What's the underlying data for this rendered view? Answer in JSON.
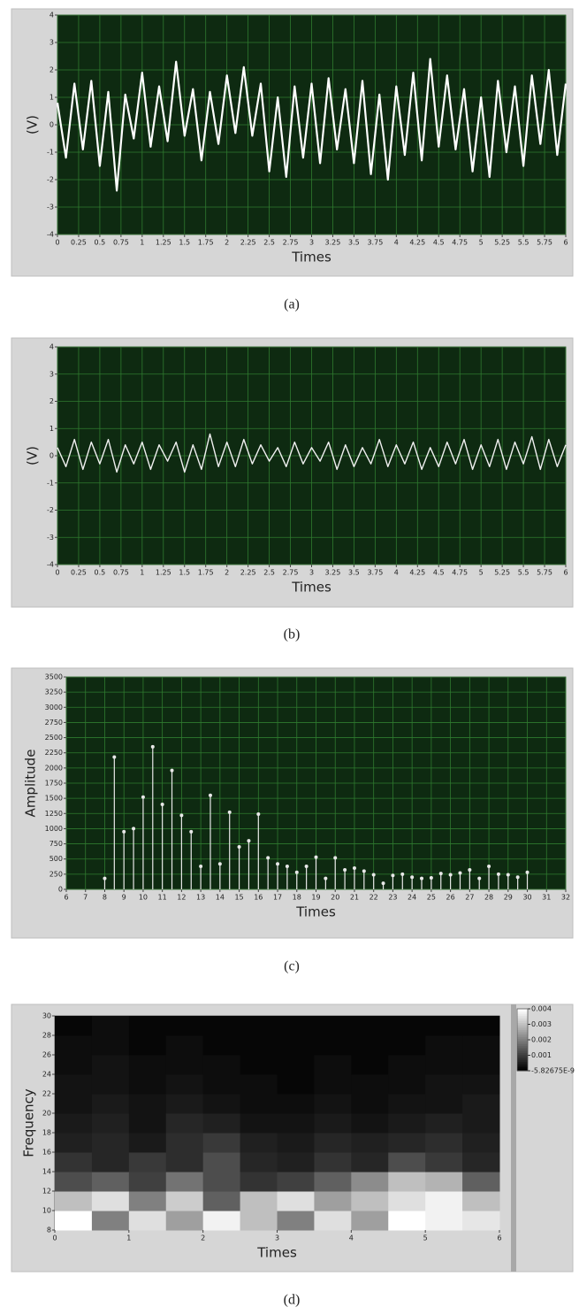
{
  "chart_data": [
    {
      "type": "line",
      "xlabel": "Times",
      "ylabel": "(V)",
      "caption": "(a)",
      "color": "#ffffff",
      "grid": true,
      "xlim": [
        0,
        6
      ],
      "ylim": [
        -4,
        4
      ],
      "xticks": [
        0,
        0.25,
        0.5,
        0.75,
        1,
        1.25,
        1.5,
        1.75,
        2,
        2.25,
        2.5,
        2.75,
        3,
        3.25,
        3.5,
        3.75,
        4,
        4.25,
        4.5,
        4.75,
        5,
        5.25,
        5.5,
        5.75,
        6
      ],
      "yticks": [
        -4,
        -3,
        -2,
        -1,
        0,
        1,
        2,
        3,
        4
      ],
      "x": [
        0,
        0.1,
        0.2,
        0.3,
        0.4,
        0.5,
        0.6,
        0.7,
        0.8,
        0.9,
        1,
        1.1,
        1.2,
        1.3,
        1.4,
        1.5,
        1.6,
        1.7,
        1.8,
        1.9,
        2,
        2.1,
        2.2,
        2.3,
        2.4,
        2.5,
        2.6,
        2.7,
        2.8,
        2.9,
        3,
        3.1,
        3.2,
        3.3,
        3.4,
        3.5,
        3.6,
        3.7,
        3.8,
        3.9,
        4,
        4.1,
        4.2,
        4.3,
        4.4,
        4.5,
        4.6,
        4.7,
        4.8,
        4.9,
        5,
        5.1,
        5.2,
        5.3,
        5.4,
        5.5,
        5.6,
        5.7,
        5.8,
        5.9,
        6
      ],
      "values": [
        0.8,
        -1.2,
        1.5,
        -0.9,
        1.6,
        -1.5,
        1.2,
        -2.4,
        1.1,
        -0.5,
        1.9,
        -0.8,
        1.4,
        -0.6,
        2.3,
        -0.4,
        1.3,
        -1.3,
        1.2,
        -0.7,
        1.8,
        -0.3,
        2.1,
        -0.4,
        1.5,
        -1.7,
        1.0,
        -1.9,
        1.4,
        -1.2,
        1.5,
        -1.4,
        1.7,
        -0.9,
        1.3,
        -1.4,
        1.6,
        -1.8,
        1.1,
        -2.0,
        1.4,
        -1.1,
        1.9,
        -1.3,
        2.4,
        -0.8,
        1.8,
        -0.9,
        1.3,
        -1.7,
        1.0,
        -1.9,
        1.6,
        -1.0,
        1.4,
        -1.5,
        1.8,
        -0.7,
        2.0,
        -1.1,
        1.5
      ]
    },
    {
      "type": "line",
      "xlabel": "Times",
      "ylabel": "(V)",
      "caption": "(b)",
      "color": "#f0f0f0",
      "grid": true,
      "xlim": [
        0,
        6
      ],
      "ylim": [
        -4,
        4
      ],
      "xticks": [
        0,
        0.25,
        0.5,
        0.75,
        1,
        1.25,
        1.5,
        1.75,
        2,
        2.25,
        2.5,
        2.75,
        3,
        3.25,
        3.5,
        3.75,
        4,
        4.25,
        4.5,
        4.75,
        5,
        5.25,
        5.5,
        5.75,
        6
      ],
      "yticks": [
        -4,
        -3,
        -2,
        -1,
        0,
        1,
        2,
        3,
        4
      ],
      "x": [
        0,
        0.1,
        0.2,
        0.3,
        0.4,
        0.5,
        0.6,
        0.7,
        0.8,
        0.9,
        1,
        1.1,
        1.2,
        1.3,
        1.4,
        1.5,
        1.6,
        1.7,
        1.8,
        1.9,
        2,
        2.1,
        2.2,
        2.3,
        2.4,
        2.5,
        2.6,
        2.7,
        2.8,
        2.9,
        3,
        3.1,
        3.2,
        3.3,
        3.4,
        3.5,
        3.6,
        3.7,
        3.8,
        3.9,
        4,
        4.1,
        4.2,
        4.3,
        4.4,
        4.5,
        4.6,
        4.7,
        4.8,
        4.9,
        5,
        5.1,
        5.2,
        5.3,
        5.4,
        5.5,
        5.6,
        5.7,
        5.8,
        5.9,
        6
      ],
      "values": [
        0.3,
        -0.4,
        0.6,
        -0.5,
        0.5,
        -0.3,
        0.6,
        -0.6,
        0.4,
        -0.3,
        0.5,
        -0.5,
        0.4,
        -0.2,
        0.5,
        -0.6,
        0.4,
        -0.5,
        0.8,
        -0.4,
        0.5,
        -0.4,
        0.6,
        -0.3,
        0.4,
        -0.2,
        0.3,
        -0.4,
        0.5,
        -0.3,
        0.3,
        -0.2,
        0.5,
        -0.5,
        0.4,
        -0.4,
        0.3,
        -0.3,
        0.6,
        -0.4,
        0.4,
        -0.3,
        0.5,
        -0.5,
        0.3,
        -0.4,
        0.5,
        -0.3,
        0.6,
        -0.5,
        0.4,
        -0.4,
        0.6,
        -0.5,
        0.5,
        -0.3,
        0.7,
        -0.5,
        0.6,
        -0.4,
        0.4
      ]
    },
    {
      "type": "stem",
      "xlabel": "Times",
      "ylabel": "Amplitude",
      "caption": "(c)",
      "color": "#e8e8e8",
      "grid": true,
      "xlim": [
        6,
        32
      ],
      "ylim": [
        0,
        3500
      ],
      "xticks": [
        6,
        7,
        8,
        9,
        10,
        11,
        12,
        13,
        14,
        15,
        16,
        17,
        18,
        19,
        20,
        21,
        22,
        23,
        24,
        25,
        26,
        27,
        28,
        29,
        30,
        31,
        32
      ],
      "yticks": [
        0,
        250,
        500,
        750,
        1000,
        1250,
        1500,
        1750,
        2000,
        2250,
        2500,
        2750,
        3000,
        3250,
        3500
      ],
      "x": [
        8,
        8.5,
        9,
        9.5,
        10,
        10.5,
        11,
        11.5,
        12,
        12.5,
        13,
        13.5,
        14,
        14.5,
        15,
        15.5,
        16,
        16.5,
        17,
        17.5,
        18,
        18.5,
        19,
        19.5,
        20,
        20.5,
        21,
        21.5,
        22,
        22.5,
        23,
        23.5,
        24,
        24.5,
        25,
        25.5,
        26,
        26.5,
        27,
        27.5,
        28,
        28.5,
        29,
        29.5,
        30
      ],
      "values": [
        180,
        2180,
        950,
        1000,
        1520,
        2350,
        1400,
        1960,
        1220,
        950,
        380,
        1550,
        420,
        1270,
        700,
        800,
        1240,
        520,
        420,
        380,
        280,
        380,
        530,
        180,
        520,
        320,
        350,
        300,
        240,
        100,
        230,
        250,
        200,
        180,
        190,
        260,
        240,
        270,
        320,
        180,
        380,
        250,
        240,
        200,
        280
      ]
    },
    {
      "type": "heatmap",
      "xlabel": "Times",
      "ylabel": "Frequency",
      "caption": "(d)",
      "grid": false,
      "xlim": [
        0,
        6
      ],
      "ylim": [
        8,
        30
      ],
      "xticks": [
        0,
        1,
        2,
        3,
        4,
        5,
        6
      ],
      "yticks": [
        8,
        10,
        12,
        14,
        16,
        18,
        20,
        22,
        24,
        26,
        28,
        30
      ],
      "x": [
        0.25,
        0.75,
        1.25,
        1.75,
        2.25,
        2.75,
        3.25,
        3.75,
        4.25,
        4.75,
        5.25,
        5.75
      ],
      "y": [
        9,
        11,
        13,
        15,
        17,
        19,
        21,
        23,
        25,
        27,
        29
      ],
      "zlim": [
        -5.82675e-09,
        0.004
      ],
      "zticks": [
        0.004,
        0.003,
        0.002,
        0.001,
        {
          "value": -5.82675e-09,
          "label": "-5.82675E-9"
        }
      ],
      "z": [
        [
          0.004,
          0.002,
          0.0035,
          0.0025,
          0.0038,
          0.003,
          0.002,
          0.0035,
          0.0025,
          0.004,
          0.0038,
          0.0036
        ],
        [
          0.003,
          0.0035,
          0.002,
          0.0032,
          0.0015,
          0.003,
          0.0035,
          0.0025,
          0.003,
          0.0035,
          0.0038,
          0.003
        ],
        [
          0.0012,
          0.0015,
          0.001,
          0.0018,
          0.0012,
          0.0008,
          0.001,
          0.0015,
          0.0022,
          0.003,
          0.0028,
          0.0015
        ],
        [
          0.0008,
          0.0006,
          0.0009,
          0.0007,
          0.0012,
          0.0006,
          0.0005,
          0.0008,
          0.0006,
          0.0012,
          0.0009,
          0.0006
        ],
        [
          0.0005,
          0.0006,
          0.0004,
          0.0007,
          0.0009,
          0.0005,
          0.0004,
          0.0006,
          0.0005,
          0.0006,
          0.0007,
          0.0005
        ],
        [
          0.0004,
          0.0005,
          0.0003,
          0.0006,
          0.0005,
          0.0003,
          0.0003,
          0.0004,
          0.0003,
          0.0004,
          0.0005,
          0.0004
        ],
        [
          0.0003,
          0.0004,
          0.0003,
          0.0004,
          0.0003,
          0.0002,
          0.0002,
          0.0003,
          0.0002,
          0.0003,
          0.0003,
          0.0004
        ],
        [
          0.0003,
          0.0003,
          0.0002,
          0.0003,
          0.0002,
          0.0002,
          0.0001,
          0.0002,
          0.0002,
          0.0002,
          0.0003,
          0.0003
        ],
        [
          0.0002,
          0.0003,
          0.0002,
          0.0002,
          0.0002,
          0.0001,
          0.0001,
          0.0002,
          0.0001,
          0.0002,
          0.0002,
          0.0002
        ],
        [
          0.0002,
          0.0002,
          0.0001,
          0.0002,
          0.0001,
          0.0001,
          0.0001,
          0.0001,
          0.0001,
          0.0001,
          0.0002,
          0.0002
        ],
        [
          0.0001,
          0.0002,
          0.0001,
          0.0001,
          0.0001,
          0.0001,
          0.0001,
          0.0001,
          0.0001,
          0.0001,
          0.0001,
          0.0001
        ]
      ]
    }
  ]
}
